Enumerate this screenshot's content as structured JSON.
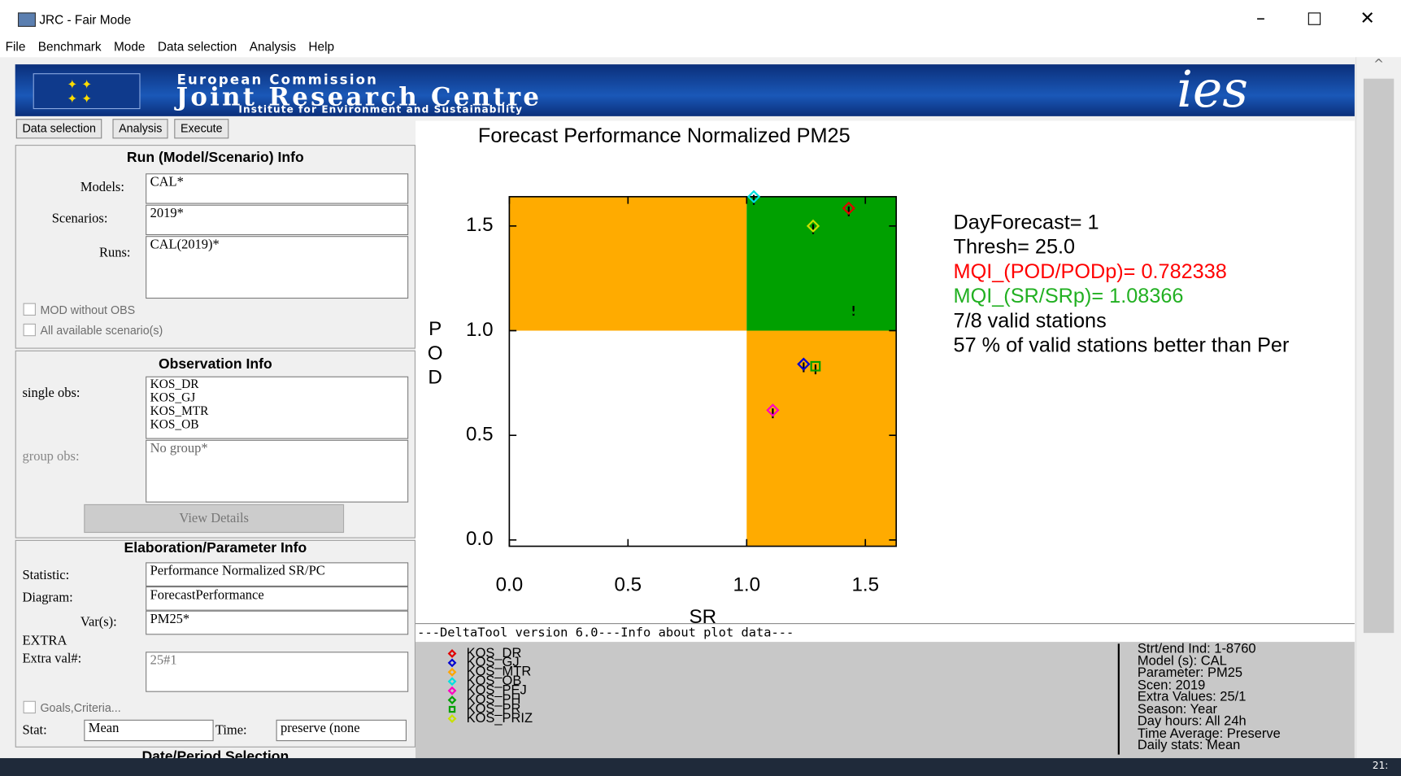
{
  "window": {
    "title": "JRC - Fair Mode"
  },
  "menu": [
    "File",
    "Benchmark",
    "Mode",
    "Data selection",
    "Analysis",
    "Help"
  ],
  "banner": {
    "line1": "European Commission",
    "line2": "Joint Research Centre",
    "line3": "Institute for Environment and Sustainability",
    "logo": "ies"
  },
  "tabs": [
    "Data selection",
    "Analysis",
    "Execute"
  ],
  "run_info": {
    "heading": "Run (Model/Scenario) Info",
    "models_label": "Models:",
    "models": "CAL*",
    "scenarios_label": "Scenarios:",
    "scenarios": "2019*",
    "runs_label": "Runs:",
    "runs": "CAL(2019)*",
    "mod_without_obs": "MOD without OBS",
    "all_scenarios": "All available scenario(s)"
  },
  "obs_info": {
    "heading": "Observation Info",
    "single_label": "single obs:",
    "single": [
      "KOS_DR",
      "KOS_GJ",
      "KOS_MTR",
      "KOS_OB"
    ],
    "group_label": "group obs:",
    "group": "No group*",
    "view_details": "View Details"
  },
  "elab_info": {
    "heading": "Elaboration/Parameter Info",
    "statistic_label": "Statistic:",
    "statistic": "Performance Normalized SR/PC",
    "diagram_label": "Diagram:",
    "diagram": "ForecastPerformance",
    "vars_label": "Var(s):",
    "vars": "PM25*",
    "extra": "EXTRA",
    "extra_label": "Extra val#:",
    "extra_val": "25#1",
    "goals": "Goals,Criteria...",
    "stat_label": "Stat:",
    "stat": "Mean",
    "time_label": "Time:",
    "time": "preserve (none"
  },
  "date_heading": "Date/Period Selection",
  "chart_data": {
    "type": "scatter",
    "title": "Forecast Performance Normalized  PM25",
    "x_label": "SR",
    "y_label": "POD",
    "xlim": [
      0,
      1.63
    ],
    "ylim": [
      -0.03,
      1.64
    ],
    "xticks": [
      {
        "value": 0,
        "label": "0.0"
      },
      0.5,
      {
        "value": 1,
        "label": "1.0"
      },
      1.5
    ],
    "yticks": [
      {
        "value": 0,
        "label": "0.0"
      },
      0.5,
      {
        "value": 1,
        "label": "1.0"
      },
      1.5
    ],
    "series": [
      {
        "name": "KOS_DR",
        "color": "#e00000",
        "marker": "diamond",
        "x": [
          1.43
        ],
        "values": [
          1.585
        ]
      },
      {
        "name": "KOS_GJ",
        "color": "#0000d0",
        "marker": "diamond",
        "x": [
          1.24
        ],
        "values": [
          0.84
        ]
      },
      {
        "name": "KOS_MTR",
        "color": "#ffa500",
        "marker": "diamond",
        "x": [
          null
        ],
        "values": [
          null
        ]
      },
      {
        "name": "KOS_OB",
        "color": "#00e0e0",
        "marker": "diamond",
        "x": [
          1.03
        ],
        "values": [
          1.64
        ]
      },
      {
        "name": "KOS_PEJ",
        "color": "#ff00c0",
        "marker": "diamond",
        "x": [
          1.11
        ],
        "values": [
          0.62
        ]
      },
      {
        "name": "KOS_PH",
        "color": "#00a000",
        "marker": "diamond",
        "x": [
          1.45
        ],
        "values": [
          1.11
        ]
      },
      {
        "name": "KOS_PR",
        "color": "#00a000",
        "marker": "square",
        "x": [
          1.29
        ],
        "values": [
          0.83
        ]
      },
      {
        "name": "KOS_PRIZ",
        "color": "#c8e000",
        "marker": "diamond",
        "x": [
          1.28
        ],
        "values": [
          1.5
        ]
      }
    ]
  },
  "plot_info": [
    {
      "text": "DayForecast= 1",
      "color": "#000000"
    },
    {
      "text": "Thresh= 25.0",
      "color": "#000000"
    },
    {
      "text": "MQI_(POD/PODp)= 0.782338",
      "color": "#ff0000"
    },
    {
      "text": "MQI_(SR/SRp)= 1.08366",
      "color": "#22b022"
    },
    {
      "text": "7/8 valid stations",
      "color": "#000000"
    },
    {
      "text": "57 % of valid stations better than Per",
      "color": "#000000"
    }
  ],
  "footer_header": "---DeltaTool version 6.0---Info about plot data---",
  "details": [
    "Strt/end Ind: 1-8760",
    "Model (s): CAL",
    "Parameter: PM25",
    "Scen: 2019",
    "Extra Values: 25/1",
    "Season: Year",
    "Day hours: All 24h",
    "Time Average: Preserve",
    "Daily stats: Mean"
  ],
  "clock": "21:"
}
